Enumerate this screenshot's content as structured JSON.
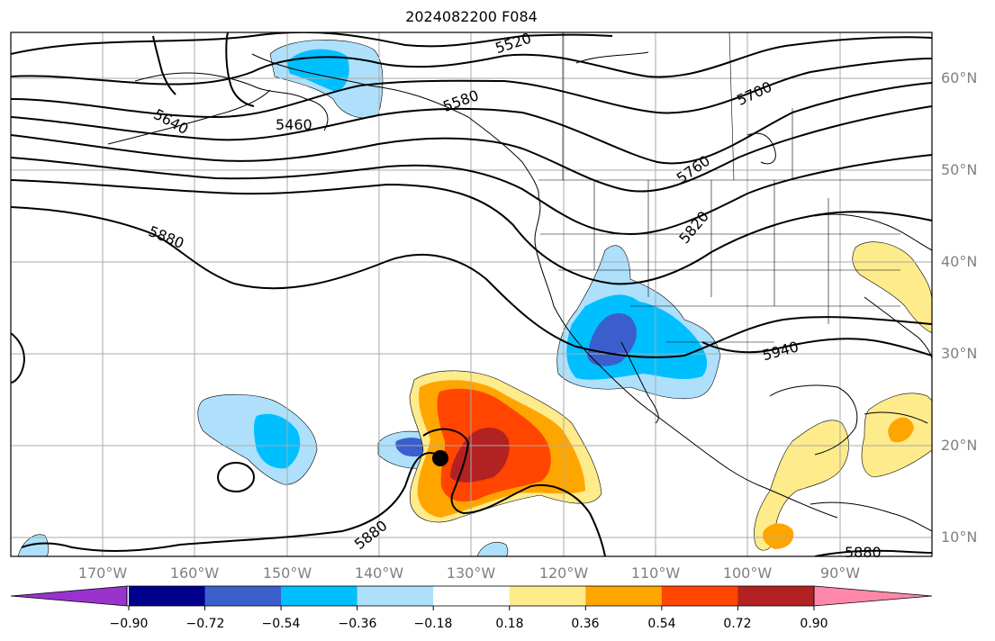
{
  "title": "2024082200 F084",
  "lat_labels": [
    "60°N",
    "50°N",
    "40°N",
    "30°N",
    "20°N",
    "10°N"
  ],
  "lon_labels": [
    "170°W",
    "160°W",
    "150°W",
    "140°W",
    "130°W",
    "120°W",
    "110°W",
    "100°W",
    "90°W"
  ],
  "contour_labels": [
    "5520",
    "5580",
    "5640",
    "5460",
    "5700",
    "5760",
    "5820",
    "5880",
    "5940",
    "5880",
    "5880"
  ],
  "colorbar": {
    "colors": [
      "#9933cc",
      "#00008b",
      "#3a5fcd",
      "#00bfff",
      "#aee0fb",
      "#ffffff",
      "#fdeb8c",
      "#ffa500",
      "#ff4500",
      "#b22222",
      "#ff88aa"
    ],
    "ticks": [
      "−0.90",
      "−0.72",
      "−0.54",
      "−0.36",
      "−0.18",
      "0.18",
      "0.36",
      "0.54",
      "0.72",
      "0.90"
    ]
  },
  "colors": {
    "light_blue": "#aee0fb",
    "sky_blue": "#00bfff",
    "royal_blue": "#3a5fcd",
    "light_yellow": "#fdeb8c",
    "orange": "#ffa500",
    "red_orange": "#ff4500",
    "dark_red": "#b22222"
  }
}
